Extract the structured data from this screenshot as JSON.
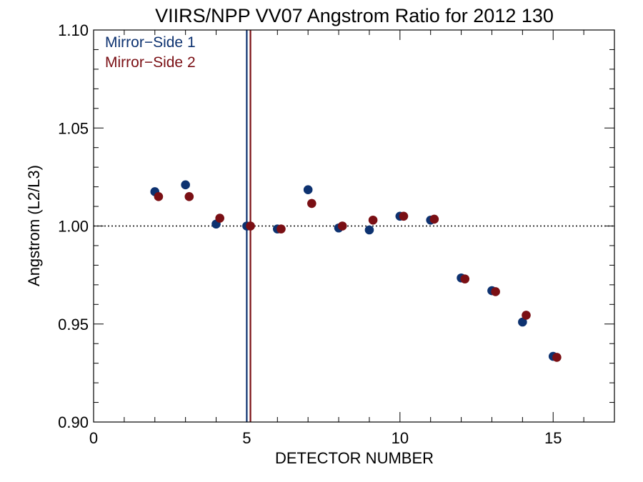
{
  "chart_data": {
    "type": "scatter",
    "title": "VIIRS/NPP VV07 Angstrom Ratio for 2012 130",
    "xlabel": "DETECTOR NUMBER",
    "ylabel": "Angstrom (L2/L3)",
    "xlim": [
      0,
      17
    ],
    "ylim": [
      0.9,
      1.1
    ],
    "x_ticks": [
      0,
      5,
      10,
      15
    ],
    "x_tick_labels": [
      "0",
      "5",
      "10",
      "15"
    ],
    "y_ticks": [
      0.9,
      0.95,
      1.0,
      1.05,
      1.1
    ],
    "y_tick_labels": [
      "0.90",
      "0.95",
      "1.00",
      "1.05",
      "1.10"
    ],
    "reference_line": {
      "y": 1.0,
      "style": "dotted"
    },
    "legend_position": "top-left",
    "series": [
      {
        "name": "Mirror−Side 1",
        "color": "#0d3270",
        "marker_line_x": 5.0,
        "x": [
          2,
          3,
          4,
          5,
          6,
          7,
          8,
          9,
          10,
          11,
          12,
          13,
          14,
          15
        ],
        "values": [
          1.0175,
          1.021,
          1.001,
          1.0,
          0.9985,
          1.0185,
          0.999,
          0.998,
          1.005,
          1.003,
          0.9735,
          0.967,
          0.951,
          0.9335
        ]
      },
      {
        "name": "Mirror−Side 2",
        "color": "#7a0f14",
        "marker_line_x": 5.12,
        "x": [
          2,
          3,
          4,
          5,
          6,
          7,
          8,
          9,
          10,
          11,
          12,
          13,
          14,
          15
        ],
        "values": [
          1.015,
          1.015,
          1.004,
          1.0,
          0.9985,
          1.0115,
          1.0,
          1.003,
          1.005,
          1.0035,
          0.973,
          0.9665,
          0.9545,
          0.933
        ]
      }
    ]
  }
}
